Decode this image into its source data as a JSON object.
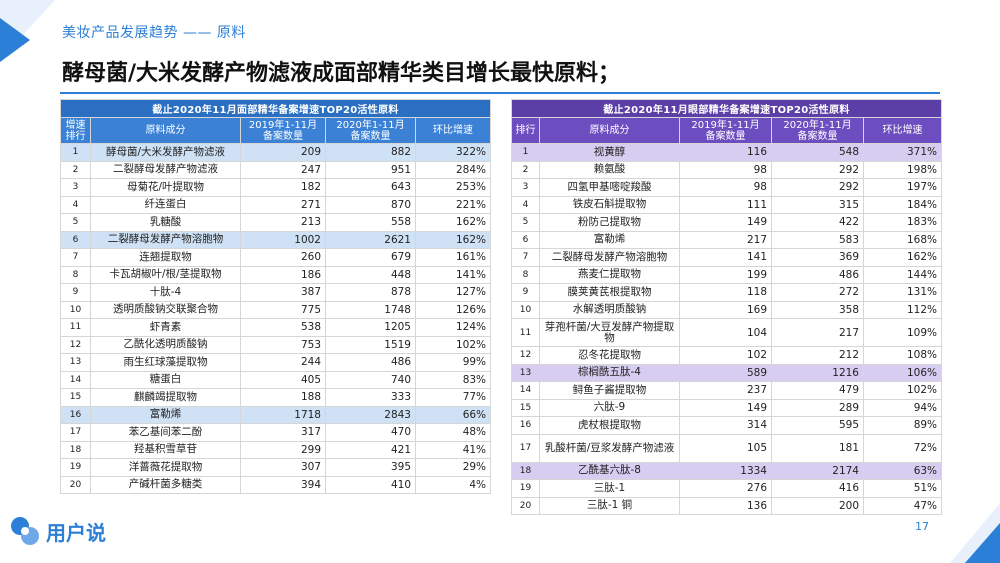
{
  "header": {
    "subtitle": "美妆产品发展趋势 —— 原料",
    "title": "酵母菌/大米发酵产物滤液成面部精华类目增长最快原料；"
  },
  "left_table": {
    "caption": "截止2020年11月面部精华备案增速TOP20活性原料",
    "headers": [
      "增速\n排行",
      "原料成分",
      "2019年1-11月\n备案数量",
      "2020年1-11月\n备案数量",
      "环比增速"
    ],
    "rows": [
      {
        "rank": "1",
        "name": "酵母菌/大米发酵产物滤液",
        "y2019": "209",
        "y2020": "882",
        "growth": "322%",
        "hl": true
      },
      {
        "rank": "2",
        "name": "二裂酵母发酵产物滤液",
        "y2019": "247",
        "y2020": "951",
        "growth": "284%",
        "hl": false
      },
      {
        "rank": "3",
        "name": "母菊花/叶提取物",
        "y2019": "182",
        "y2020": "643",
        "growth": "253%",
        "hl": false
      },
      {
        "rank": "4",
        "name": "纤连蛋白",
        "y2019": "271",
        "y2020": "870",
        "growth": "221%",
        "hl": false
      },
      {
        "rank": "5",
        "name": "乳糖酸",
        "y2019": "213",
        "y2020": "558",
        "growth": "162%",
        "hl": false
      },
      {
        "rank": "6",
        "name": "二裂酵母发酵产物溶胞物",
        "y2019": "1002",
        "y2020": "2621",
        "growth": "162%",
        "hl": true
      },
      {
        "rank": "7",
        "name": "连翘提取物",
        "y2019": "260",
        "y2020": "679",
        "growth": "161%",
        "hl": false
      },
      {
        "rank": "8",
        "name": "卡瓦胡椒叶/根/茎提取物",
        "y2019": "186",
        "y2020": "448",
        "growth": "141%",
        "hl": false
      },
      {
        "rank": "9",
        "name": "十肽-4",
        "y2019": "387",
        "y2020": "878",
        "growth": "127%",
        "hl": false
      },
      {
        "rank": "10",
        "name": "透明质酸钠交联聚合物",
        "y2019": "775",
        "y2020": "1748",
        "growth": "126%",
        "hl": false
      },
      {
        "rank": "11",
        "name": "虾青素",
        "y2019": "538",
        "y2020": "1205",
        "growth": "124%",
        "hl": false
      },
      {
        "rank": "12",
        "name": "乙酰化透明质酸钠",
        "y2019": "753",
        "y2020": "1519",
        "growth": "102%",
        "hl": false
      },
      {
        "rank": "13",
        "name": "雨生红球藻提取物",
        "y2019": "244",
        "y2020": "486",
        "growth": "99%",
        "hl": false
      },
      {
        "rank": "14",
        "name": "糖蛋白",
        "y2019": "405",
        "y2020": "740",
        "growth": "83%",
        "hl": false
      },
      {
        "rank": "15",
        "name": "麒麟竭提取物",
        "y2019": "188",
        "y2020": "333",
        "growth": "77%",
        "hl": false
      },
      {
        "rank": "16",
        "name": "富勒烯",
        "y2019": "1718",
        "y2020": "2843",
        "growth": "66%",
        "hl": true
      },
      {
        "rank": "17",
        "name": "苯乙基间苯二酚",
        "y2019": "317",
        "y2020": "470",
        "growth": "48%",
        "hl": false
      },
      {
        "rank": "18",
        "name": "羟基积雪草苷",
        "y2019": "299",
        "y2020": "421",
        "growth": "41%",
        "hl": false
      },
      {
        "rank": "19",
        "name": "洋蔷薇花提取物",
        "y2019": "307",
        "y2020": "395",
        "growth": "29%",
        "hl": false
      },
      {
        "rank": "20",
        "name": "产碱杆菌多糖类",
        "y2019": "394",
        "y2020": "410",
        "growth": "4%",
        "hl": false
      }
    ]
  },
  "right_table": {
    "caption": "截止2020年11月眼部精华备案增速TOP20活性原料",
    "headers": [
      "排行",
      "原料成分",
      "2019年1-11月\n备案数量",
      "2020年1-11月\n备案数量",
      "环比增速"
    ],
    "rows": [
      {
        "rank": "1",
        "name": "视黄醇",
        "y2019": "116",
        "y2020": "548",
        "growth": "371%",
        "hl": true,
        "tall": false
      },
      {
        "rank": "2",
        "name": "赖氨酸",
        "y2019": "98",
        "y2020": "292",
        "growth": "198%",
        "hl": false,
        "tall": false
      },
      {
        "rank": "3",
        "name": "四氢甲基嘧啶羧酸",
        "y2019": "98",
        "y2020": "292",
        "growth": "197%",
        "hl": false,
        "tall": false
      },
      {
        "rank": "4",
        "name": "铁皮石斛提取物",
        "y2019": "111",
        "y2020": "315",
        "growth": "184%",
        "hl": false,
        "tall": false
      },
      {
        "rank": "5",
        "name": "粉防己提取物",
        "y2019": "149",
        "y2020": "422",
        "growth": "183%",
        "hl": false,
        "tall": false
      },
      {
        "rank": "6",
        "name": "富勒烯",
        "y2019": "217",
        "y2020": "583",
        "growth": "168%",
        "hl": false,
        "tall": false
      },
      {
        "rank": "7",
        "name": "二裂酵母发酵产物溶胞物",
        "y2019": "141",
        "y2020": "369",
        "growth": "162%",
        "hl": false,
        "tall": false
      },
      {
        "rank": "8",
        "name": "燕麦仁提取物",
        "y2019": "199",
        "y2020": "486",
        "growth": "144%",
        "hl": false,
        "tall": false
      },
      {
        "rank": "9",
        "name": "膜荚黄芪根提取物",
        "y2019": "118",
        "y2020": "272",
        "growth": "131%",
        "hl": false,
        "tall": false
      },
      {
        "rank": "10",
        "name": "水解透明质酸钠",
        "y2019": "169",
        "y2020": "358",
        "growth": "112%",
        "hl": false,
        "tall": false
      },
      {
        "rank": "11",
        "name": "芽孢杆菌/大豆发酵产物提取物",
        "y2019": "104",
        "y2020": "217",
        "growth": "109%",
        "hl": false,
        "tall": true
      },
      {
        "rank": "12",
        "name": "忍冬花提取物",
        "y2019": "102",
        "y2020": "212",
        "growth": "108%",
        "hl": false,
        "tall": false
      },
      {
        "rank": "13",
        "name": "棕榈酰五肽-4",
        "y2019": "589",
        "y2020": "1216",
        "growth": "106%",
        "hl": true,
        "tall": false
      },
      {
        "rank": "14",
        "name": "鲟鱼子酱提取物",
        "y2019": "237",
        "y2020": "479",
        "growth": "102%",
        "hl": false,
        "tall": false
      },
      {
        "rank": "15",
        "name": "六肽-9",
        "y2019": "149",
        "y2020": "289",
        "growth": "94%",
        "hl": false,
        "tall": false
      },
      {
        "rank": "16",
        "name": "虎杖根提取物",
        "y2019": "314",
        "y2020": "595",
        "growth": "89%",
        "hl": false,
        "tall": false
      },
      {
        "rank": "17",
        "name": "乳酸杆菌/豆浆发酵产物滤液",
        "y2019": "105",
        "y2020": "181",
        "growth": "72%",
        "hl": false,
        "tall": true
      },
      {
        "rank": "18",
        "name": "乙酰基六肽-8",
        "y2019": "1334",
        "y2020": "2174",
        "growth": "63%",
        "hl": true,
        "tall": false
      },
      {
        "rank": "19",
        "name": "三肽-1",
        "y2019": "276",
        "y2020": "416",
        "growth": "51%",
        "hl": false,
        "tall": false
      },
      {
        "rank": "20",
        "name": "三肽-1 铜",
        "y2019": "136",
        "y2020": "200",
        "growth": "47%",
        "hl": false,
        "tall": false
      }
    ]
  },
  "footer": {
    "logo_text": "用户说",
    "page_number": "17",
    "brand_color": "#2c7fd6"
  }
}
